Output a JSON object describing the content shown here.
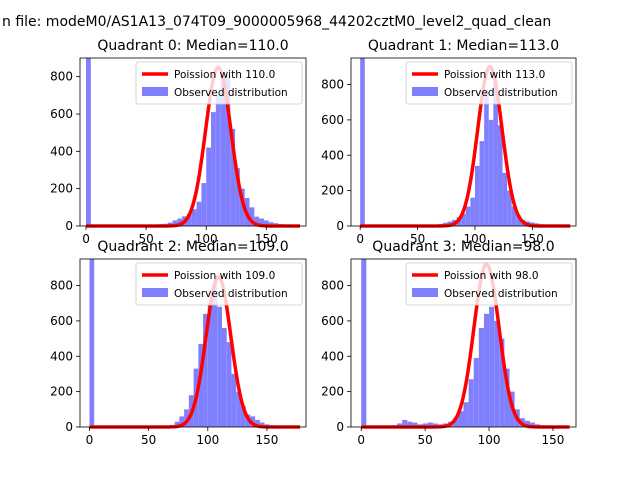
{
  "figure": {
    "suptitle": "n file: modeM0/AS1A13_074T09_9000005968_44202cztM0_level2_quad_clean"
  },
  "legend": {
    "observed_label": "Observed distribution",
    "poisson_color": "#ff0000",
    "bar_color": "#8080ff"
  },
  "chart_data": [
    {
      "type": "bar",
      "title": "Quadrant 0: Median=110.0",
      "poisson_label": "Poission with 110.0",
      "median": 110.0,
      "xlim": [
        -5,
        183
      ],
      "ylim": [
        0,
        900
      ],
      "xticks": [
        0,
        50,
        100,
        150
      ],
      "yticks": [
        0,
        200,
        400,
        600,
        800
      ],
      "bin_width": 4,
      "bins": [
        [
          0,
          900
        ],
        [
          4,
          8
        ],
        [
          8,
          3
        ],
        [
          12,
          2
        ],
        [
          16,
          2
        ],
        [
          20,
          2
        ],
        [
          24,
          2
        ],
        [
          28,
          2
        ],
        [
          32,
          2
        ],
        [
          36,
          2
        ],
        [
          40,
          3
        ],
        [
          44,
          3
        ],
        [
          48,
          4
        ],
        [
          52,
          6
        ],
        [
          56,
          8
        ],
        [
          60,
          10
        ],
        [
          64,
          12
        ],
        [
          68,
          18
        ],
        [
          72,
          30
        ],
        [
          76,
          40
        ],
        [
          80,
          52
        ],
        [
          84,
          65
        ],
        [
          88,
          90
        ],
        [
          92,
          130
        ],
        [
          96,
          230
        ],
        [
          100,
          420
        ],
        [
          104,
          610
        ],
        [
          108,
          700
        ],
        [
          112,
          780
        ],
        [
          116,
          810
        ],
        [
          120,
          520
        ],
        [
          124,
          310
        ],
        [
          128,
          200
        ],
        [
          132,
          150
        ],
        [
          136,
          100
        ],
        [
          140,
          50
        ],
        [
          144,
          40
        ],
        [
          148,
          30
        ],
        [
          152,
          20
        ],
        [
          156,
          15
        ],
        [
          160,
          10
        ],
        [
          164,
          6
        ],
        [
          168,
          4
        ]
      ],
      "poisson_peak": 850
    },
    {
      "type": "bar",
      "title": "Quadrant 1: Median=113.0",
      "poisson_label": "Poission with 113.0",
      "median": 113.0,
      "xlim": [
        -8,
        188
      ],
      "ylim": [
        0,
        950
      ],
      "xticks": [
        0,
        50,
        100,
        150
      ],
      "yticks": [
        0,
        200,
        400,
        600,
        800
      ],
      "bin_width": 4,
      "bins": [
        [
          0,
          950
        ],
        [
          4,
          8
        ],
        [
          8,
          3
        ],
        [
          12,
          2
        ],
        [
          16,
          2
        ],
        [
          20,
          2
        ],
        [
          24,
          2
        ],
        [
          28,
          2
        ],
        [
          32,
          2
        ],
        [
          36,
          2
        ],
        [
          40,
          2
        ],
        [
          44,
          3
        ],
        [
          48,
          3
        ],
        [
          52,
          4
        ],
        [
          56,
          5
        ],
        [
          60,
          6
        ],
        [
          64,
          8
        ],
        [
          68,
          12
        ],
        [
          72,
          18
        ],
        [
          76,
          25
        ],
        [
          80,
          35
        ],
        [
          84,
          50
        ],
        [
          88,
          70
        ],
        [
          92,
          110
        ],
        [
          96,
          160
        ],
        [
          100,
          340
        ],
        [
          104,
          480
        ],
        [
          108,
          760
        ],
        [
          112,
          600
        ],
        [
          116,
          820
        ],
        [
          120,
          570
        ],
        [
          124,
          300
        ],
        [
          128,
          200
        ],
        [
          132,
          110
        ],
        [
          136,
          60
        ],
        [
          140,
          35
        ],
        [
          144,
          25
        ],
        [
          148,
          20
        ],
        [
          152,
          15
        ],
        [
          156,
          10
        ],
        [
          160,
          8
        ],
        [
          164,
          6
        ],
        [
          168,
          4
        ],
        [
          172,
          3
        ]
      ],
      "poisson_peak": 900
    },
    {
      "type": "bar",
      "title": "Quadrant 2: Median=109.0",
      "poisson_label": "Poission with 109.0",
      "median": 109.0,
      "xlim": [
        -8,
        183
      ],
      "ylim": [
        0,
        950
      ],
      "xticks": [
        0,
        50,
        100,
        150
      ],
      "yticks": [
        0,
        200,
        400,
        600,
        800
      ],
      "bin_width": 4,
      "bins": [
        [
          0,
          950
        ],
        [
          4,
          8
        ],
        [
          8,
          3
        ],
        [
          12,
          2
        ],
        [
          16,
          2
        ],
        [
          20,
          2
        ],
        [
          24,
          2
        ],
        [
          28,
          2
        ],
        [
          32,
          2
        ],
        [
          36,
          2
        ],
        [
          40,
          2
        ],
        [
          44,
          3
        ],
        [
          48,
          3
        ],
        [
          52,
          4
        ],
        [
          56,
          5
        ],
        [
          60,
          6
        ],
        [
          64,
          8
        ],
        [
          68,
          12
        ],
        [
          72,
          30
        ],
        [
          76,
          60
        ],
        [
          80,
          100
        ],
        [
          84,
          180
        ],
        [
          88,
          330
        ],
        [
          92,
          470
        ],
        [
          96,
          640
        ],
        [
          100,
          700
        ],
        [
          104,
          820
        ],
        [
          108,
          680
        ],
        [
          112,
          560
        ],
        [
          116,
          480
        ],
        [
          120,
          300
        ],
        [
          124,
          200
        ],
        [
          128,
          120
        ],
        [
          132,
          70
        ],
        [
          136,
          60
        ],
        [
          140,
          40
        ],
        [
          144,
          25
        ],
        [
          148,
          15
        ],
        [
          152,
          10
        ],
        [
          156,
          6
        ],
        [
          160,
          4
        ]
      ],
      "poisson_peak": 850
    },
    {
      "type": "bar",
      "title": "Quadrant 3: Median=98.0",
      "poisson_label": "Poission with 98.0",
      "median": 98.0,
      "xlim": [
        -8,
        168
      ],
      "ylim": [
        0,
        950
      ],
      "xticks": [
        0,
        50,
        100,
        150
      ],
      "yticks": [
        0,
        200,
        400,
        600,
        800
      ],
      "bin_width": 4,
      "bins": [
        [
          0,
          950
        ],
        [
          4,
          8
        ],
        [
          8,
          3
        ],
        [
          12,
          3
        ],
        [
          16,
          4
        ],
        [
          20,
          6
        ],
        [
          24,
          10
        ],
        [
          28,
          20
        ],
        [
          32,
          40
        ],
        [
          36,
          30
        ],
        [
          40,
          25
        ],
        [
          44,
          15
        ],
        [
          48,
          20
        ],
        [
          52,
          25
        ],
        [
          56,
          20
        ],
        [
          60,
          15
        ],
        [
          64,
          20
        ],
        [
          68,
          30
        ],
        [
          72,
          50
        ],
        [
          76,
          90
        ],
        [
          80,
          140
        ],
        [
          84,
          270
        ],
        [
          88,
          390
        ],
        [
          92,
          560
        ],
        [
          96,
          640
        ],
        [
          100,
          680
        ],
        [
          104,
          600
        ],
        [
          108,
          500
        ],
        [
          112,
          330
        ],
        [
          116,
          200
        ],
        [
          120,
          100
        ],
        [
          124,
          50
        ],
        [
          128,
          35
        ],
        [
          132,
          25
        ],
        [
          136,
          15
        ],
        [
          140,
          10
        ],
        [
          144,
          8
        ],
        [
          148,
          5
        ],
        [
          152,
          4
        ]
      ],
      "poisson_peak": 920
    }
  ]
}
